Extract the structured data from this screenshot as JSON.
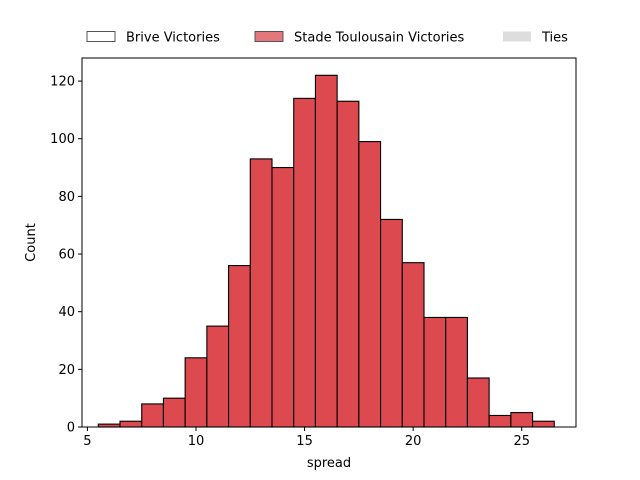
{
  "chart_data": {
    "type": "bar",
    "title": "",
    "xlabel": "spread",
    "ylabel": "Count",
    "xlim": [
      4.75,
      27.5
    ],
    "ylim": [
      0,
      128
    ],
    "x_ticks": [
      5,
      10,
      15,
      20,
      25
    ],
    "y_ticks": [
      0,
      20,
      40,
      60,
      80,
      100,
      120
    ],
    "legend_position": "top, above plot",
    "grid": false,
    "bin_width": 1,
    "series": [
      {
        "name": "Stade Toulousain Victories",
        "color": "#dc4a50",
        "bins": [
          {
            "x0": 5.5,
            "x1": 6.5,
            "count": 1
          },
          {
            "x0": 6.5,
            "x1": 7.5,
            "count": 2
          },
          {
            "x0": 7.5,
            "x1": 8.5,
            "count": 8
          },
          {
            "x0": 8.5,
            "x1": 9.5,
            "count": 10
          },
          {
            "x0": 9.5,
            "x1": 10.5,
            "count": 24
          },
          {
            "x0": 10.5,
            "x1": 11.5,
            "count": 35
          },
          {
            "x0": 11.5,
            "x1": 12.5,
            "count": 56
          },
          {
            "x0": 12.5,
            "x1": 13.5,
            "count": 93
          },
          {
            "x0": 13.5,
            "x1": 14.5,
            "count": 90
          },
          {
            "x0": 14.5,
            "x1": 15.5,
            "count": 114
          },
          {
            "x0": 15.5,
            "x1": 16.5,
            "count": 122
          },
          {
            "x0": 16.5,
            "x1": 17.5,
            "count": 113
          },
          {
            "x0": 17.5,
            "x1": 18.5,
            "count": 99
          },
          {
            "x0": 18.5,
            "x1": 19.5,
            "count": 72
          },
          {
            "x0": 19.5,
            "x1": 20.5,
            "count": 57
          },
          {
            "x0": 20.5,
            "x1": 21.5,
            "count": 38
          },
          {
            "x0": 21.5,
            "x1": 22.5,
            "count": 38
          },
          {
            "x0": 22.5,
            "x1": 23.5,
            "count": 17
          },
          {
            "x0": 23.5,
            "x1": 24.5,
            "count": 4
          },
          {
            "x0": 24.5,
            "x1": 25.5,
            "count": 5
          },
          {
            "x0": 25.5,
            "x1": 26.5,
            "count": 2
          }
        ]
      }
    ],
    "legend": [
      {
        "label": "Brive Victories",
        "fill": "#ffffff",
        "stroke": "#555555"
      },
      {
        "label": "Stade Toulousain Victories",
        "fill": "#e3777c",
        "stroke": "#555555"
      },
      {
        "label": "Ties",
        "fill": "#dddddd",
        "stroke": "none"
      }
    ]
  }
}
